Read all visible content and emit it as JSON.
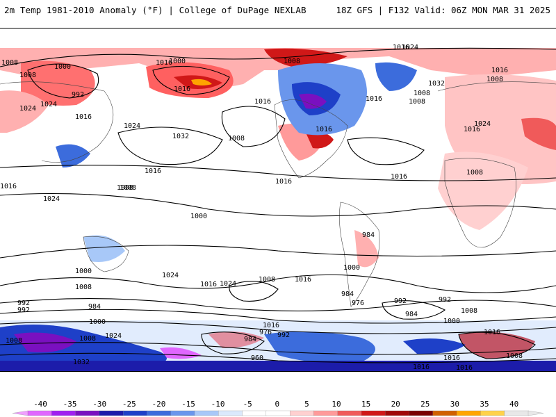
{
  "header": {
    "title_left": "2m Temp 1981-2010 Anomaly (°F) | College of DuPage NEXLAB",
    "title_right": "18Z GFS | F132 Valid: 06Z MON MAR 31 2025"
  },
  "legend": {
    "ticks": [
      "-40",
      "-35",
      "-30",
      "-25",
      "-20",
      "-15",
      "-10",
      "-5",
      "0",
      "5",
      "10",
      "15",
      "20",
      "25",
      "30",
      "35",
      "40"
    ],
    "colors": [
      "#e066ff",
      "#a020f0",
      "#7a10c0",
      "#1c1caa",
      "#1e40c8",
      "#3c6cdc",
      "#6a96ec",
      "#a8c8f8",
      "#dbe9fc",
      "#ffffff",
      "#ffffff",
      "#ffd0d0",
      "#ff9a9a",
      "#f05a5a",
      "#d01818",
      "#a00808",
      "#7a0000",
      "#d06000",
      "#ffa500",
      "#ffd24a",
      "#e8e8e8"
    ]
  },
  "map": {
    "isobar_labels": [
      "1008",
      "1016",
      "1024",
      "1008",
      "1000",
      "992",
      "1016",
      "1024",
      "1032",
      "1016",
      "1008",
      "1016",
      "1024",
      "1016",
      "1000",
      "1032",
      "1016",
      "1008",
      "1016",
      "1024",
      "1016",
      "1008",
      "1008",
      "1008",
      "1016",
      "1008",
      "1016",
      "1024",
      "1016",
      "1008",
      "1016",
      "1024",
      "1008",
      "1000",
      "1016",
      "984",
      "992",
      "1000",
      "984",
      "992",
      "1024",
      "1000",
      "1008",
      "1016",
      "1024",
      "1008",
      "1016",
      "1000",
      "984",
      "976",
      "992",
      "984",
      "992",
      "1000",
      "1008",
      "1016",
      "976",
      "984",
      "992",
      "960",
      "1008",
      "1016",
      "1032",
      "1024",
      "1008",
      "1016",
      "1008",
      "1016",
      "1016"
    ]
  }
}
